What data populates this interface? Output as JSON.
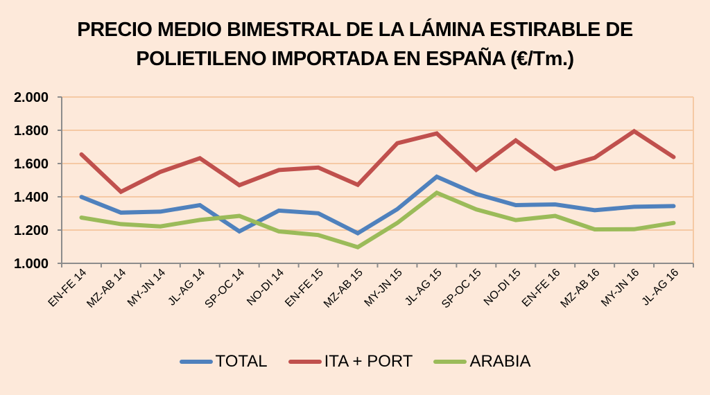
{
  "chart_data": {
    "type": "line",
    "title_lines": [
      "PRECIO MEDIO BIMESTRAL DE LA LÁMINA ESTIRABLE DE",
      "POLIETILENO IMPORTADA EN ESPAÑA (€/Tm.)"
    ],
    "xlabel": "",
    "ylabel": "",
    "ylim": [
      1000,
      2000
    ],
    "yticks": [
      1000,
      1200,
      1400,
      1600,
      1800,
      2000
    ],
    "ytick_labels": [
      "1.000",
      "1.200",
      "1.400",
      "1.600",
      "1.800",
      "2.000"
    ],
    "grid": true,
    "legend_position": "bottom",
    "categories": [
      "EN-FE 14",
      "MZ-AB 14",
      "MY-JN 14",
      "JL-AG 14",
      "SP-OC 14",
      "NO-DI 14",
      "EN-FE 15",
      "MZ-AB 15",
      "MY-JN 15",
      "JL-AG 15",
      "SP-OC 15",
      "NO-DI 15",
      "EN-FE 16",
      "MZ-AB 16",
      "MY-JN 16",
      "JL-AG 16"
    ],
    "series": [
      {
        "name": "TOTAL",
        "color": "#4F81BD",
        "values": [
          1399,
          1305,
          1311,
          1350,
          1192,
          1317,
          1301,
          1181,
          1326,
          1521,
          1417,
          1350,
          1354,
          1319,
          1340,
          1344
        ]
      },
      {
        "name": "ITA + PORT",
        "color": "#C0504D",
        "values": [
          1655,
          1430,
          1550,
          1632,
          1470,
          1561,
          1576,
          1472,
          1722,
          1781,
          1562,
          1739,
          1567,
          1635,
          1794,
          1639
        ]
      },
      {
        "name": "ARABIA",
        "color": "#9BBB59",
        "values": [
          1275,
          1236,
          1222,
          1261,
          1285,
          1192,
          1170,
          1097,
          1243,
          1424,
          1324,
          1260,
          1285,
          1204,
          1205,
          1243
        ]
      }
    ]
  },
  "colors": {
    "background": "#FDE9DA",
    "gridline": "#F5C9A4",
    "axis": "#8C8C8C"
  }
}
